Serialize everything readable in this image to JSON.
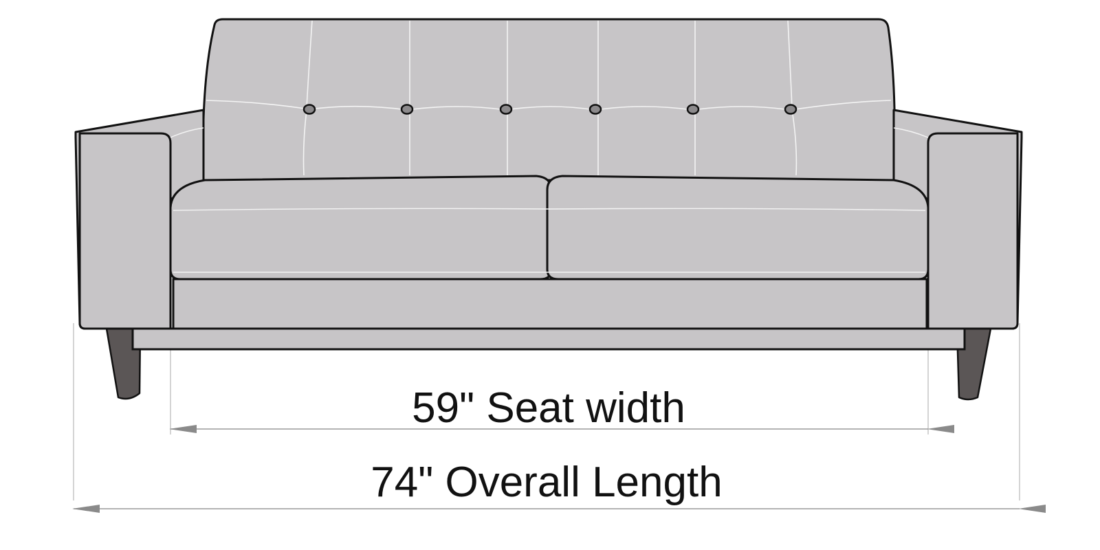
{
  "diagram": {
    "colors": {
      "upholstery": "#c7c5c7",
      "outline": "#111111",
      "seam": "#f4f4f4",
      "button": "#8c8a8c",
      "leg": "#5b5656",
      "dimension_line": "#9a9a9a",
      "background": "#ffffff"
    },
    "dimensions": {
      "seat_width_label": "59\" Seat width",
      "overall_length_label": "74\" Overall Length"
    },
    "tufting": {
      "button_count": 6
    }
  }
}
